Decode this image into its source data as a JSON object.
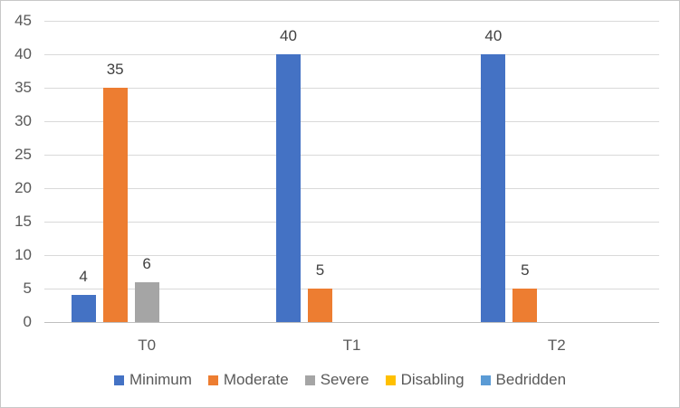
{
  "chart_data": {
    "type": "bar",
    "title": "",
    "categories": [
      "T0",
      "T1",
      "T2"
    ],
    "series": [
      {
        "name": "Minimum",
        "color": "#4472C4",
        "values": [
          4,
          40,
          40
        ]
      },
      {
        "name": "Moderate",
        "color": "#ED7D31",
        "values": [
          35,
          5,
          5
        ]
      },
      {
        "name": "Severe",
        "color": "#A5A5A5",
        "values": [
          6,
          0,
          0
        ]
      },
      {
        "name": "Disabling",
        "color": "#FFC000",
        "values": [
          0,
          0,
          0
        ]
      },
      {
        "name": "Bedridden",
        "color": "#5B9BD5",
        "values": [
          0,
          0,
          0
        ]
      }
    ],
    "xlabel": "",
    "ylabel": "",
    "ylim": [
      0,
      45
    ],
    "yticks": [
      0,
      5,
      10,
      15,
      20,
      25,
      30,
      35,
      40,
      45
    ],
    "grid": true,
    "legend_position": "bottom",
    "data_labels": "non-zero bars only"
  },
  "colors": {
    "gridline": "#D9D9D9",
    "axis_line": "#BFBFBF",
    "tick_label_text": "#595959",
    "data_label_text": "#404040",
    "legend_text": "#595959",
    "chart_border": "#C8C8C8",
    "background": "#FFFFFF"
  }
}
